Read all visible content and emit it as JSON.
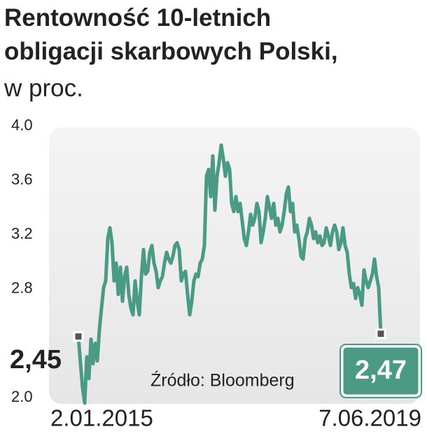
{
  "chart_data": {
    "type": "line",
    "title": "Rentowność 10-letnich obligacji skarbowych Polski,",
    "subtitle": "w proc.",
    "source": "Źródło: Bloomberg",
    "categories": [
      "2.01.2015",
      null,
      null,
      null,
      null,
      null,
      null,
      null,
      null,
      null,
      null,
      null,
      null,
      null,
      null,
      null,
      null,
      null,
      null,
      null,
      null,
      null,
      null,
      null,
      null,
      null,
      null,
      null,
      null,
      null,
      null,
      null,
      null,
      null,
      null,
      null,
      null,
      null,
      null,
      null,
      null,
      null,
      null,
      null,
      null,
      null,
      null,
      null,
      null,
      null,
      null,
      null,
      null,
      null,
      null,
      null,
      null,
      null,
      null,
      null,
      null,
      null,
      null,
      null,
      null,
      null,
      null,
      null,
      null,
      null,
      null,
      null,
      null,
      null,
      null,
      null,
      null,
      null,
      null,
      null,
      null,
      null,
      null,
      null,
      null,
      null,
      null,
      null,
      null,
      null,
      null,
      null,
      null,
      null,
      null,
      null,
      null,
      null,
      null,
      null,
      null,
      null,
      null,
      null,
      null,
      null,
      null,
      null,
      null,
      null,
      null,
      null,
      null,
      null,
      null,
      null,
      null,
      null,
      null,
      null,
      null,
      null,
      null,
      null,
      null,
      null,
      null,
      null,
      null,
      null,
      null,
      null,
      null,
      null,
      null,
      null,
      null,
      null,
      null,
      null,
      null,
      null,
      null,
      null,
      "7.06.2019"
    ],
    "values": [
      2.45,
      2.25,
      2.07,
      1.96,
      2.3,
      2.14,
      2.43,
      2.25,
      2.4,
      2.27,
      2.5,
      2.66,
      2.81,
      2.86,
      3.17,
      3.25,
      3.14,
      2.86,
      2.99,
      2.76,
      2.96,
      2.71,
      2.89,
      2.96,
      2.76,
      2.66,
      2.61,
      2.86,
      2.71,
      2.61,
      2.89,
      3.09,
      2.91,
      2.93,
      3.07,
      3.12,
      2.99,
      2.93,
      2.81,
      2.86,
      2.89,
      2.99,
      3.07,
      3.02,
      2.99,
      3.04,
      3.12,
      3.14,
      3.09,
      2.86,
      2.91,
      2.93,
      2.76,
      2.61,
      2.71,
      2.86,
      2.91,
      2.89,
      2.99,
      3.02,
      3.12,
      3.63,
      3.68,
      3.48,
      3.78,
      3.38,
      3.63,
      3.73,
      3.86,
      3.76,
      3.63,
      3.73,
      3.68,
      3.43,
      3.37,
      3.48,
      3.37,
      3.43,
      3.3,
      3.17,
      3.12,
      3.22,
      3.35,
      3.27,
      3.32,
      3.43,
      3.37,
      3.14,
      3.22,
      3.32,
      3.48,
      3.4,
      3.32,
      3.43,
      3.27,
      3.32,
      3.22,
      3.27,
      3.37,
      3.5,
      3.55,
      3.37,
      3.43,
      3.22,
      3.27,
      3.17,
      3.04,
      3.02,
      3.17,
      3.22,
      3.32,
      3.27,
      3.17,
      3.22,
      3.14,
      3.19,
      3.12,
      3.14,
      3.25,
      3.19,
      3.12,
      3.22,
      3.27,
      3.22,
      3.09,
      3.14,
      3.25,
      3.12,
      3.07,
      2.91,
      2.81,
      2.84,
      2.73,
      2.81,
      2.76,
      2.68,
      2.94,
      2.86,
      2.81,
      2.86,
      2.91,
      3.02,
      2.89,
      2.81,
      2.47
    ],
    "value_labels": [
      "2,45",
      null,
      null,
      null,
      null,
      null,
      null,
      null,
      null,
      null,
      null,
      null,
      null,
      null,
      null,
      null,
      null,
      null,
      null,
      null,
      null,
      null,
      null,
      null,
      null,
      null,
      null,
      null,
      null,
      null,
      null,
      null,
      null,
      null,
      null,
      null,
      null,
      null,
      null,
      null,
      null,
      null,
      null,
      null,
      null,
      null,
      null,
      null,
      null,
      null,
      null,
      null,
      null,
      null,
      null,
      null,
      null,
      null,
      null,
      null,
      null,
      null,
      null,
      null,
      null,
      null,
      null,
      null,
      null,
      null,
      null,
      null,
      null,
      null,
      null,
      null,
      null,
      null,
      null,
      null,
      null,
      null,
      null,
      null,
      null,
      null,
      null,
      null,
      null,
      null,
      null,
      null,
      null,
      null,
      null,
      null,
      null,
      null,
      null,
      null,
      null,
      null,
      null,
      null,
      null,
      null,
      null,
      null,
      null,
      null,
      null,
      null,
      null,
      null,
      null,
      null,
      null,
      null,
      null,
      null,
      null,
      null,
      null,
      null,
      null,
      null,
      null,
      null,
      null,
      null,
      null,
      null,
      null,
      null,
      null,
      null,
      null,
      null,
      null,
      null,
      null,
      null,
      null,
      null,
      "2,47"
    ],
    "color": "#4a9a86",
    "ylim": [
      2.0,
      4.0
    ],
    "yticks": [
      {
        "value": 2,
        "label": "2.0"
      },
      {
        "value": 2.8,
        "label": "2.8"
      },
      {
        "value": 3.2,
        "label": "3.2"
      },
      {
        "value": 3.6,
        "label": "3.6"
      },
      {
        "value": 4,
        "label": "4.0"
      }
    ],
    "grid": false
  }
}
